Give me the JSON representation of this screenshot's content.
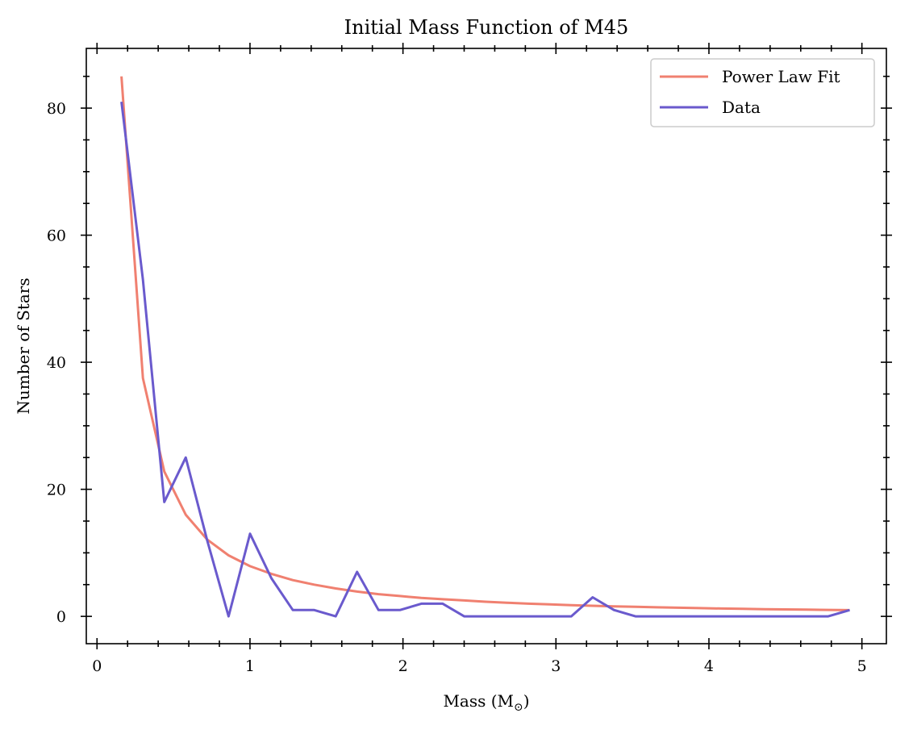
{
  "chart_data": {
    "type": "line",
    "title": "Initial Mass Function of M45",
    "xlabel_text": "Mass (M",
    "xlabel_sub": "⊙",
    "xlabel_close": ")",
    "ylabel": "Number of Stars",
    "xlim": [
      -0.07,
      5.16
    ],
    "ylim": [
      -4.3,
      89.4
    ],
    "xticks": [
      0,
      1,
      2,
      3,
      4,
      5
    ],
    "yticks": [
      0,
      20,
      40,
      60,
      80
    ],
    "x_minor_step": 0.2,
    "y_minor_step": 5,
    "grid": false,
    "legend_position": "top-right",
    "series": [
      {
        "name": "Power Law Fit",
        "color": "#f08070",
        "x": [
          0.16,
          0.3,
          0.44,
          0.58,
          0.72,
          0.86,
          1.0,
          1.14,
          1.28,
          1.42,
          1.56,
          1.7,
          1.84,
          1.98,
          2.12,
          2.26,
          2.4,
          2.54,
          2.68,
          2.82,
          2.96,
          3.1,
          3.24,
          3.38,
          3.52,
          3.66,
          3.8,
          3.94,
          4.08,
          4.22,
          4.36,
          4.5,
          4.64,
          4.78,
          4.92
        ],
        "y": [
          85.0,
          37.5,
          22.8,
          16.0,
          12.1,
          9.6,
          7.9,
          6.7,
          5.7,
          5.0,
          4.4,
          3.9,
          3.5,
          3.2,
          2.9,
          2.7,
          2.5,
          2.3,
          2.15,
          2.0,
          1.88,
          1.77,
          1.67,
          1.58,
          1.5,
          1.43,
          1.36,
          1.3,
          1.24,
          1.19,
          1.14,
          1.1,
          1.06,
          1.02,
          0.98
        ]
      },
      {
        "name": "Data",
        "color": "#6a5acd",
        "x": [
          0.16,
          0.3,
          0.44,
          0.58,
          0.72,
          0.86,
          1.0,
          1.14,
          1.28,
          1.42,
          1.56,
          1.7,
          1.84,
          1.98,
          2.12,
          2.26,
          2.4,
          2.54,
          2.68,
          2.82,
          2.96,
          3.1,
          3.24,
          3.38,
          3.52,
          3.66,
          3.8,
          3.94,
          4.08,
          4.22,
          4.36,
          4.5,
          4.64,
          4.78,
          4.92
        ],
        "y": [
          81,
          53,
          18,
          25,
          12,
          0,
          13,
          6,
          1,
          1,
          0,
          7,
          1,
          1,
          2,
          2,
          0,
          0,
          0,
          0,
          0,
          0,
          3,
          1,
          0,
          0,
          0,
          0,
          0,
          0,
          0,
          0,
          0,
          0,
          1
        ]
      }
    ]
  }
}
